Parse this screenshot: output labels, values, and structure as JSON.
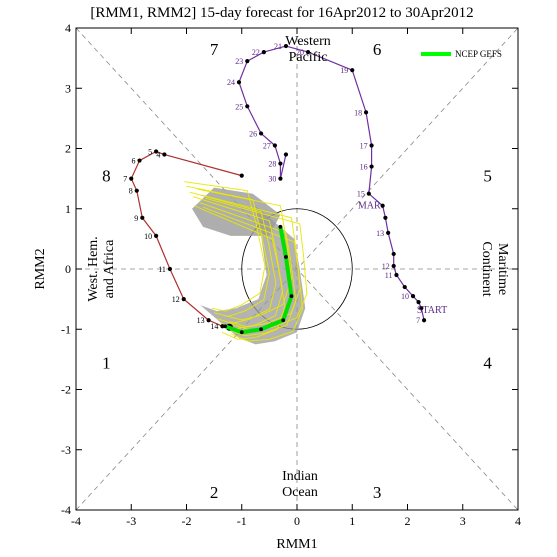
{
  "chart_data": {
    "type": "line",
    "title": "[RMM1, RMM2] 15-day forecast for 16Apr2012 to 30Apr2012",
    "xlabel": "RMM1",
    "ylabel": "RMM2",
    "xlim": [
      -4,
      4
    ],
    "ylim": [
      -4,
      4
    ],
    "xticks": [
      "-4",
      "-3",
      "-2",
      "-1",
      "0",
      "1",
      "2",
      "3",
      "4"
    ],
    "yticks": [
      "-4",
      "-3",
      "-2",
      "-1",
      "0",
      "1",
      "2",
      "3",
      "4"
    ],
    "phases": [
      {
        "label": "1",
        "x": -3.45,
        "y": -1.55
      },
      {
        "label": "2",
        "x": -1.5,
        "y": -3.7
      },
      {
        "label": "3",
        "x": 1.45,
        "y": -3.7
      },
      {
        "label": "4",
        "x": 3.45,
        "y": -1.55
      },
      {
        "label": "5",
        "x": 3.45,
        "y": 1.55
      },
      {
        "label": "6",
        "x": 1.45,
        "y": 3.65
      },
      {
        "label": "7",
        "x": -1.5,
        "y": 3.65
      },
      {
        "label": "8",
        "x": -3.45,
        "y": 1.55
      }
    ],
    "regions": {
      "western_pacific": [
        "Western",
        "Pacific"
      ],
      "indian_ocean": [
        "Indian",
        "Ocean"
      ],
      "west_hem": [
        "West. Hem.",
        "and Africa"
      ],
      "maritime": [
        "Maritime",
        "Continent"
      ]
    },
    "legend": {
      "label": "NCEP GEFS",
      "position": "top-right",
      "color": "#00ff00"
    },
    "colors": {
      "observed_march": "#b03030",
      "observed_april": "#7030a0",
      "ensemble": "#e8e800",
      "spread": "#9a9a9a",
      "mean": "#00e000"
    },
    "series": [
      {
        "marker_label": "MAR",
        "color": "#b03030",
        "points": [
          {
            "label": "",
            "x": -1.0,
            "y": 1.55
          },
          {
            "label": "4",
            "x": -2.4,
            "y": 1.9
          },
          {
            "label": "5",
            "x": -2.55,
            "y": 1.95
          },
          {
            "label": "6",
            "x": -2.85,
            "y": 1.8
          },
          {
            "label": "7",
            "x": -3.0,
            "y": 1.5
          },
          {
            "label": "8",
            "x": -2.9,
            "y": 1.3
          },
          {
            "label": "9",
            "x": -2.8,
            "y": 0.85
          },
          {
            "label": "10",
            "x": -2.55,
            "y": 0.55
          },
          {
            "label": "11",
            "x": -2.3,
            "y": 0.0
          },
          {
            "label": "12",
            "x": -2.05,
            "y": -0.5
          },
          {
            "label": "13",
            "x": -1.6,
            "y": -0.85
          },
          {
            "label": "14",
            "x": -1.35,
            "y": -0.95
          }
        ]
      },
      {
        "marker_label": "START",
        "color": "#7030a0",
        "points": [
          {
            "label": "",
            "x": -0.2,
            "y": 1.9
          },
          {
            "label": "30",
            "x": -0.3,
            "y": 1.5
          },
          {
            "label": "28",
            "x": -0.3,
            "y": 1.75
          },
          {
            "label": "27",
            "x": -0.4,
            "y": 2.05
          },
          {
            "label": "26",
            "x": -0.65,
            "y": 2.25
          },
          {
            "label": "25",
            "x": -0.9,
            "y": 2.7
          },
          {
            "label": "24",
            "x": -1.05,
            "y": 3.1
          },
          {
            "label": "23",
            "x": -0.9,
            "y": 3.45
          },
          {
            "label": "22",
            "x": -0.6,
            "y": 3.6
          },
          {
            "label": "21",
            "x": -0.2,
            "y": 3.7
          },
          {
            "label": "20",
            "x": 0.2,
            "y": 3.6
          },
          {
            "label": "19",
            "x": 1.0,
            "y": 3.3
          },
          {
            "label": "18",
            "x": 1.25,
            "y": 2.6
          },
          {
            "label": "17",
            "x": 1.35,
            "y": 2.05
          },
          {
            "label": "16",
            "x": 1.35,
            "y": 1.7
          },
          {
            "label": "15",
            "x": 1.3,
            "y": 1.25
          },
          {
            "label": "",
            "x": 1.55,
            "y": 1.05
          },
          {
            "label": "",
            "x": 1.6,
            "y": 0.85
          },
          {
            "label": "13",
            "x": 1.65,
            "y": 0.6
          },
          {
            "label": "",
            "x": 1.75,
            "y": 0.25
          },
          {
            "label": "12",
            "x": 1.75,
            "y": 0.05
          },
          {
            "label": "11",
            "x": 1.8,
            "y": -0.1
          },
          {
            "label": "",
            "x": 1.95,
            "y": -0.3
          },
          {
            "label": "10",
            "x": 2.1,
            "y": -0.45
          },
          {
            "label": "",
            "x": 2.2,
            "y": -0.55
          },
          {
            "label": "",
            "x": 2.25,
            "y": -0.65
          },
          {
            "label": "7",
            "x": 2.3,
            "y": -0.85
          }
        ]
      },
      {
        "name": "NCEP GEFS",
        "color": "#00e000",
        "points": [
          {
            "x": -0.3,
            "y": 0.7
          },
          {
            "x": -0.2,
            "y": 0.2
          },
          {
            "x": -0.1,
            "y": -0.45
          },
          {
            "x": -0.25,
            "y": -0.85
          },
          {
            "x": -0.65,
            "y": -1.0
          },
          {
            "x": -1.0,
            "y": -1.05
          },
          {
            "x": -1.3,
            "y": -0.95
          }
        ]
      }
    ]
  }
}
